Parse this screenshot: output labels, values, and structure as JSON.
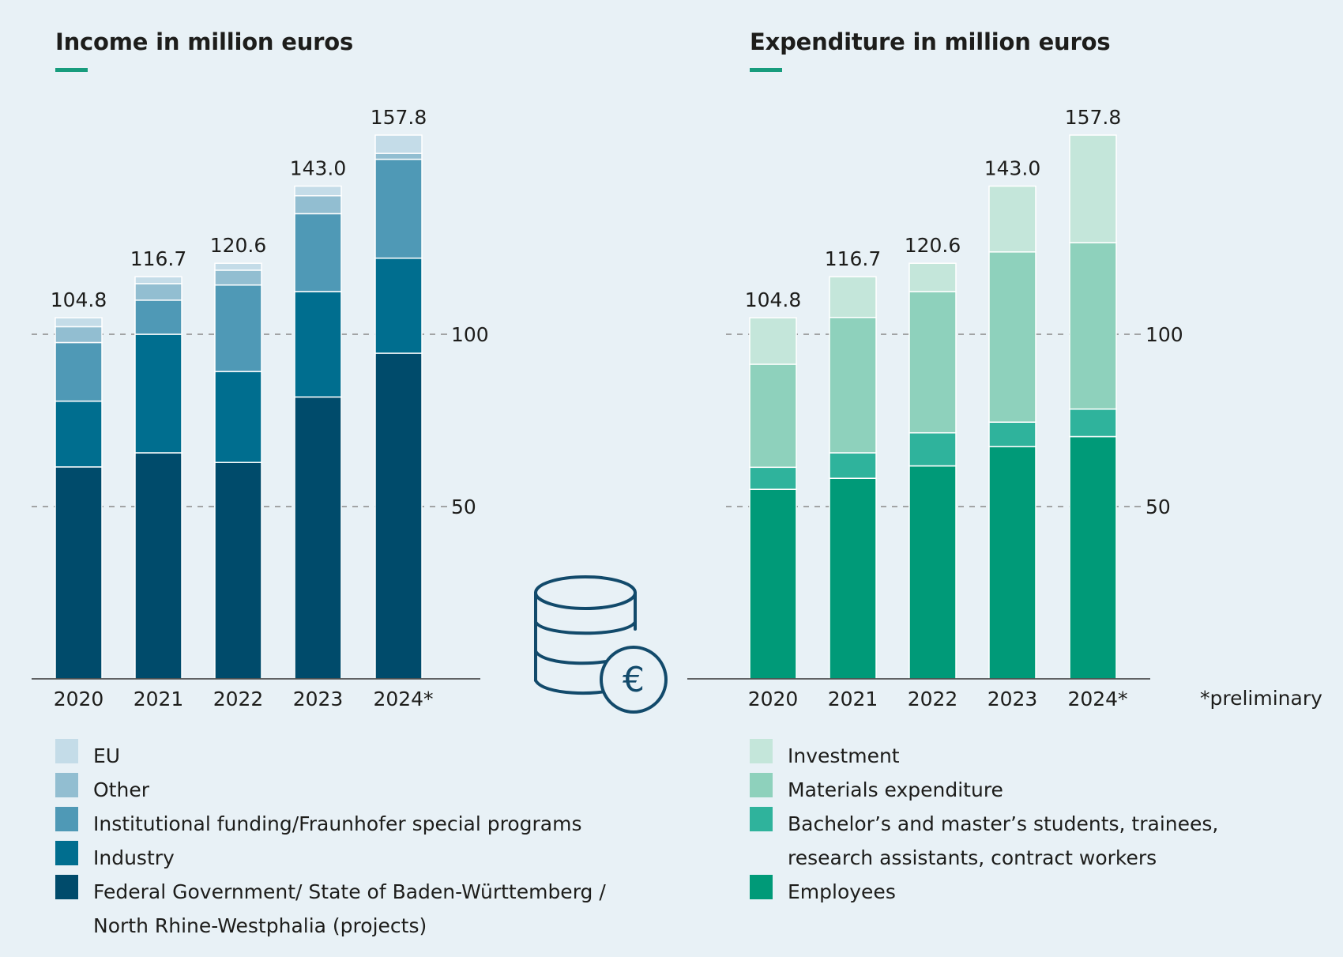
{
  "colors": {
    "income": [
      "#004b6b",
      "#006e8f",
      "#4f99b6",
      "#92bed1",
      "#c4dce8"
    ],
    "expenditure": [
      "#009a78",
      "#2fb39c",
      "#8ed1bc",
      "#c4e6da"
    ],
    "grid": "#8a8a8a",
    "axis": "#333333",
    "accent": "#179c7d",
    "icon": "#124a6b"
  },
  "icon": "coins-euro-icon",
  "footnote": "*preliminary",
  "chart_data": [
    {
      "type": "bar",
      "stacked": true,
      "title": "Income in million euros",
      "categories": [
        "2020",
        "2021",
        "2022",
        "2023",
        "2024*"
      ],
      "totals": [
        "104.8",
        "116.7",
        "120.6",
        "143.0",
        "157.8"
      ],
      "series": [
        {
          "name": "Federal Government/ State of Baden-Württemberg /",
          "name_line2": "North Rhine-Westphalia (projects)",
          "values": [
            61.5,
            65.6,
            62.8,
            81.8,
            94.5
          ]
        },
        {
          "name": "Industry",
          "values": [
            19.1,
            34.4,
            26.4,
            30.6,
            27.6
          ]
        },
        {
          "name": "Institutional funding/Fraunhofer special programs",
          "values": [
            17.0,
            9.9,
            25.1,
            22.6,
            28.7
          ]
        },
        {
          "name": "Other",
          "values": [
            4.6,
            4.8,
            4.3,
            5.2,
            1.7
          ]
        },
        {
          "name": "EU",
          "values": [
            2.6,
            2.0,
            2.0,
            2.8,
            5.3
          ]
        }
      ],
      "yticks": [
        50,
        100
      ],
      "ylim": [
        0,
        165
      ],
      "grid": "dashed"
    },
    {
      "type": "bar",
      "stacked": true,
      "title": "Expenditure in million euros",
      "categories": [
        "2020",
        "2021",
        "2022",
        "2023",
        "2024*"
      ],
      "totals": [
        "104.8",
        "116.7",
        "120.6",
        "143.0",
        "157.8"
      ],
      "series": [
        {
          "name": "Employees",
          "values": [
            55.0,
            58.2,
            61.8,
            67.4,
            70.3
          ]
        },
        {
          "name": "Bachelor’s and master’s students, trainees,",
          "name_line2": "research assistants, contract workers",
          "values": [
            6.4,
            7.4,
            9.6,
            7.1,
            8.0
          ]
        },
        {
          "name": "Materials expenditure",
          "values": [
            29.9,
            39.3,
            41.0,
            49.4,
            48.3
          ]
        },
        {
          "name": "Investment",
          "values": [
            13.5,
            11.8,
            8.2,
            19.1,
            31.2
          ]
        }
      ],
      "yticks": [
        50,
        100
      ],
      "ylim": [
        0,
        165
      ],
      "grid": "dashed"
    }
  ]
}
